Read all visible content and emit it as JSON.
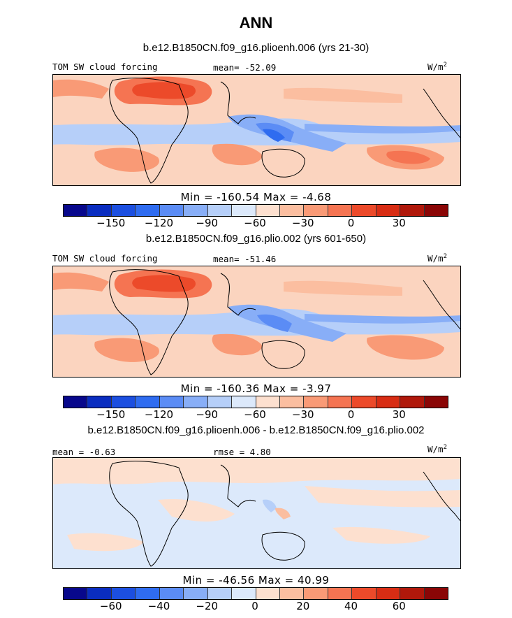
{
  "title": "ANN",
  "colors": {
    "palette": [
      "#08088c",
      "#0a2dc0",
      "#1c4fe0",
      "#2f6cf0",
      "#5b8cf5",
      "#88aef7",
      "#b6cff9",
      "#dce9fb",
      "#fde0cf",
      "#fbbea0",
      "#f99a76",
      "#f57452",
      "#ec4a2a",
      "#d82d14",
      "#b0180b",
      "#8a0606"
    ]
  },
  "chart_data": [
    {
      "type": "heatmap",
      "subtitle": "b.e12.B1850CN.f09_g16.plioenh.006 (yrs 21-30)",
      "left_label": "TOM SW cloud forcing",
      "center_label": "mean= -52.09",
      "units": "W/m",
      "units_sup": "2",
      "minmax": "Min = -160.54 Max =  -4.68",
      "colorbar_ticks": [
        "-150",
        "-120",
        "-90",
        "-60",
        "-30",
        "0",
        "30"
      ]
    },
    {
      "type": "heatmap",
      "subtitle": "b.e12.B1850CN.f09_g16.plio.002 (yrs 601-650)",
      "left_label": "TOM SW cloud forcing",
      "center_label": "mean= -51.46",
      "units": "W/m",
      "units_sup": "2",
      "minmax": "Min = -160.36 Max =  -3.97",
      "colorbar_ticks": [
        "-150",
        "-120",
        "-90",
        "-60",
        "-30",
        "0",
        "30"
      ]
    },
    {
      "type": "heatmap",
      "subtitle": "b.e12.B1850CN.f09_g16.plioenh.006 - b.e12.B1850CN.f09_g16.plio.002",
      "left_label": "mean =  -0.63",
      "center_label": "rmse =   4.80",
      "units": "W/m",
      "units_sup": "2",
      "minmax": "Min = -46.56 Max =  40.99",
      "colorbar_ticks": [
        "-60",
        "-40",
        "-20",
        "0",
        "20",
        "40",
        "60"
      ]
    }
  ]
}
